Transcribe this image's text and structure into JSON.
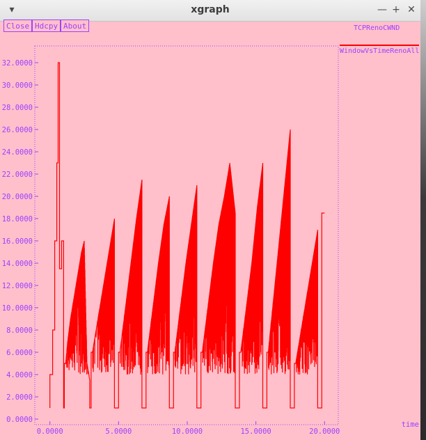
{
  "window": {
    "title": "xgraph",
    "controls": {
      "menu": "▾",
      "minimize": "—",
      "maximize": "+",
      "close": "✕"
    }
  },
  "toolbar": {
    "close_label": "Close",
    "hdcpy_label": "Hdcpy",
    "about_label": "About"
  },
  "plot_title": "TCPRenoCWND",
  "colors": {
    "background": "#ffc0cb",
    "axis": "#a040ff",
    "series": "#ff0000"
  },
  "chart_data": {
    "type": "line",
    "xlabel": "time",
    "ylabel": "",
    "xlim": [
      -1.1,
      21.0
    ],
    "ylim": [
      -0.5,
      33.5
    ],
    "x_ticks": [
      "0.0000",
      "5.0000",
      "10.0000",
      "15.0000",
      "20.0000"
    ],
    "y_ticks": [
      "0.0000",
      "2.0000",
      "4.0000",
      "6.0000",
      "8.0000",
      "10.0000",
      "12.0000",
      "14.0000",
      "16.0000",
      "18.0000",
      "20.0000",
      "22.0000",
      "24.0000",
      "26.0000",
      "28.0000",
      "30.0000",
      "32.0000"
    ],
    "legend": "top-right",
    "series": [
      {
        "name": "WindowVsTimeRenoAll",
        "x": [
          0.0,
          0.2,
          0.35,
          0.5,
          0.6,
          0.7,
          0.85,
          1.0,
          1.05,
          1.15,
          1.3,
          1.5,
          1.7,
          1.9,
          2.1,
          2.3,
          2.5,
          2.7,
          2.9,
          3.0,
          3.1,
          3.5,
          3.9,
          4.3,
          4.7,
          5.0,
          5.1,
          5.5,
          5.9,
          6.3,
          6.7,
          7.0,
          7.1,
          7.5,
          7.9,
          8.3,
          8.7,
          9.0,
          9.1,
          9.5,
          9.9,
          10.3,
          10.7,
          11.0,
          11.1,
          11.5,
          11.9,
          12.3,
          12.7,
          13.1,
          13.5,
          13.8,
          13.9,
          14.3,
          14.7,
          15.1,
          15.5,
          15.8,
          15.9,
          16.3,
          16.7,
          17.1,
          17.5,
          17.8,
          17.9,
          18.3,
          18.7,
          19.1,
          19.5,
          19.8,
          20.0
        ],
        "y": [
          1.0,
          4.0,
          8.0,
          16.0,
          23.0,
          32.0,
          13.5,
          16.0,
          1.0,
          5.0,
          7.0,
          9.0,
          10.5,
          12.0,
          13.5,
          15.0,
          16.0,
          5.0,
          3.5,
          1.0,
          6.0,
          9.0,
          12.0,
          15.0,
          18.0,
          1.0,
          6.0,
          10.0,
          14.0,
          18.0,
          21.5,
          1.0,
          6.0,
          10.0,
          14.0,
          17.5,
          20.0,
          1.0,
          6.0,
          10.0,
          14.0,
          17.5,
          21.0,
          1.0,
          6.0,
          10.0,
          14.0,
          17.5,
          20.0,
          23.0,
          18.5,
          1.0,
          6.0,
          10.0,
          14.0,
          19.0,
          23.0,
          1.0,
          6.0,
          11.0,
          16.0,
          21.0,
          26.0,
          1.0,
          5.0,
          8.0,
          11.0,
          14.0,
          17.0,
          1.0,
          18.5
        ],
        "noise_band": [
          4.0,
          12.0
        ],
        "max": 32.0
      }
    ]
  }
}
